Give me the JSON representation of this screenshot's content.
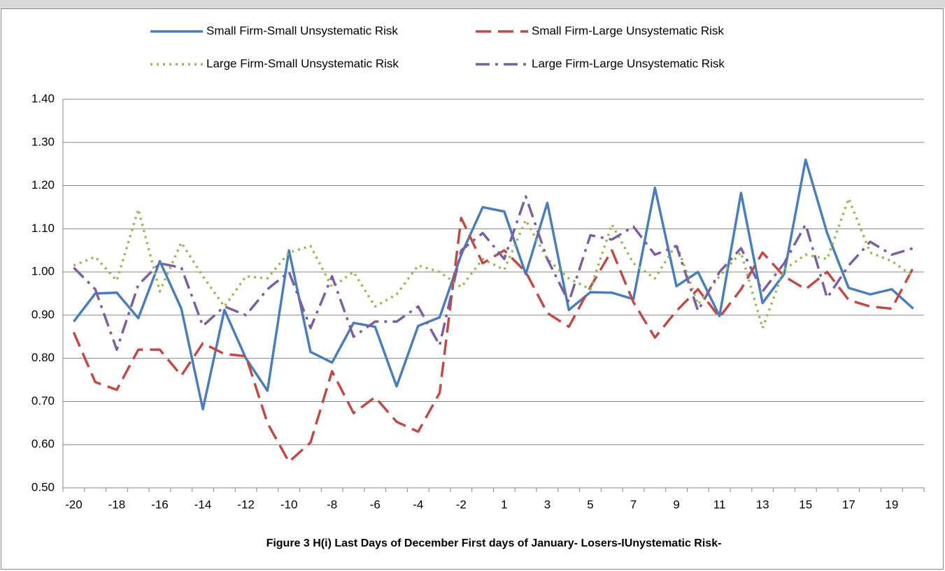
{
  "chart_data": {
    "type": "line",
    "title": "Figure 3 H(i) Last Days of December First days of January- Losers-IUnystematic  Risk-",
    "categories": [
      "-20",
      null,
      "-18",
      null,
      "-16",
      null,
      "-14",
      null,
      "-12",
      null,
      "-10",
      null,
      "-8",
      null,
      "-6",
      null,
      "-4",
      null,
      "-2",
      null,
      "1",
      null,
      "3",
      null,
      "5",
      null,
      "7",
      null,
      "9",
      null,
      "11",
      null,
      "13",
      null,
      "15",
      null,
      "17",
      null,
      "19",
      null
    ],
    "series": [
      {
        "name": "Small Firm-Small Unsystematic Risk",
        "color": "#4a7ebb",
        "dash": "solid",
        "values": [
          0.885,
          0.95,
          0.952,
          0.893,
          1.025,
          0.915,
          0.682,
          0.912,
          0.8,
          0.725,
          1.05,
          0.815,
          0.79,
          0.882,
          0.873,
          0.735,
          0.875,
          0.895,
          1.04,
          1.15,
          1.14,
          0.995,
          1.16,
          0.912,
          0.953,
          0.952,
          0.937,
          1.195,
          0.967,
          1.0,
          0.898,
          1.183,
          0.928,
          0.995,
          1.26,
          1.09,
          0.963,
          0.948,
          0.96,
          0.915
        ]
      },
      {
        "name": "Small Firm-Large Unsystematic Risk",
        "color": "#be4b48",
        "dash": "dashed",
        "values": [
          0.86,
          0.745,
          0.727,
          0.82,
          0.82,
          0.76,
          0.835,
          0.81,
          0.805,
          0.65,
          0.56,
          0.605,
          0.77,
          0.673,
          0.71,
          0.653,
          0.63,
          0.72,
          1.125,
          1.02,
          1.05,
          1.0,
          0.905,
          0.873,
          0.965,
          1.05,
          0.93,
          0.848,
          0.91,
          0.96,
          0.895,
          0.96,
          1.045,
          0.99,
          0.96,
          1.0,
          0.935,
          0.92,
          0.915,
          1.01
        ]
      },
      {
        "name": "Large Firm-Small Unsystematic Risk",
        "color": "#98b954",
        "dash": "dotted",
        "values": [
          1.015,
          1.035,
          0.98,
          1.145,
          0.955,
          1.068,
          0.99,
          0.92,
          0.99,
          0.985,
          1.045,
          1.06,
          0.965,
          1.0,
          0.92,
          0.948,
          1.015,
          1.0,
          0.965,
          1.03,
          1.005,
          1.12,
          1.03,
          0.985,
          0.96,
          1.11,
          1.02,
          0.985,
          1.065,
          0.925,
          0.99,
          1.045,
          0.87,
          1.005,
          1.04,
          1.03,
          1.17,
          1.045,
          1.025,
          0.99
        ]
      },
      {
        "name": "Large Firm-Large Unsystematic Risk",
        "color": "#7d5fa0",
        "dash": "dashdot",
        "values": [
          1.01,
          0.96,
          0.82,
          0.97,
          1.02,
          1.01,
          0.875,
          0.92,
          0.9,
          0.96,
          1.0,
          0.87,
          0.99,
          0.85,
          0.885,
          0.885,
          0.92,
          0.83,
          1.05,
          1.09,
          1.03,
          1.175,
          1.03,
          0.93,
          1.085,
          1.075,
          1.105,
          1.04,
          1.06,
          0.91,
          1.0,
          1.055,
          0.955,
          1.02,
          1.11,
          0.94,
          1.015,
          1.07,
          1.04,
          1.055
        ]
      }
    ],
    "ylim": [
      0.5,
      1.4
    ],
    "yticks": [
      {
        "value": 0.5,
        "label": "0.50"
      },
      {
        "value": 0.6,
        "label": "0.60"
      },
      {
        "value": 0.7,
        "label": "0.70"
      },
      {
        "value": 0.8,
        "label": "0.80"
      },
      {
        "value": 0.9,
        "label": "0.90"
      },
      {
        "value": 1.0,
        "label": "1.00"
      },
      {
        "value": 1.1,
        "label": "1.10"
      },
      {
        "value": 1.2,
        "label": "1.20"
      },
      {
        "value": 1.3,
        "label": "1.30"
      },
      {
        "value": 1.4,
        "label": "1.40"
      }
    ],
    "grid": true,
    "legend": "top"
  }
}
